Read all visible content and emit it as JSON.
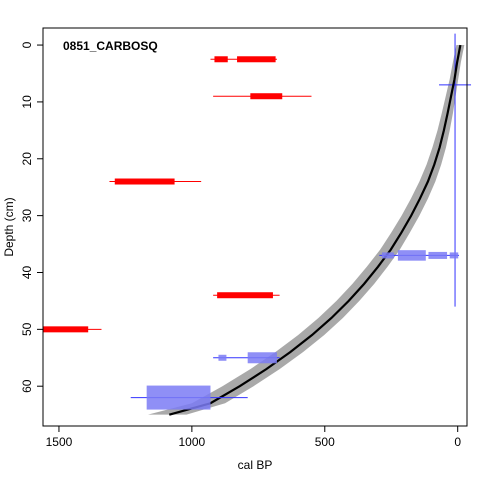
{
  "chart_data": {
    "type": "scatter",
    "title": "0851_CARBOSQ",
    "xlabel": "cal BP",
    "ylabel": "Depth (cm)",
    "xlim": [
      1560,
      -35
    ],
    "ylim": [
      67,
      -3
    ],
    "x_ticks": [
      1500,
      1000,
      500,
      0
    ],
    "y_ticks": [
      0,
      10,
      20,
      30,
      40,
      50,
      60
    ],
    "grid": false,
    "colors": {
      "excluded": "#ff0000",
      "included": "#3333ff",
      "included_fill": "#7b7bf4",
      "model_band": "#a9a9a9",
      "model_line": "#000000"
    },
    "age_depth_model": {
      "depth": [
        0,
        3,
        6,
        9,
        12,
        15,
        18,
        21,
        24,
        27,
        30,
        33,
        36,
        39,
        42,
        45,
        48,
        51,
        54,
        57,
        60,
        63,
        65
      ],
      "mean_age": [
        -10,
        2,
        12,
        25,
        38,
        52,
        68,
        88,
        112,
        142,
        175,
        212,
        252,
        300,
        352,
        410,
        475,
        548,
        630,
        720,
        820,
        930,
        1085
      ],
      "min_age": [
        -25,
        -12,
        -2,
        8,
        18,
        30,
        44,
        62,
        84,
        112,
        144,
        180,
        218,
        264,
        314,
        370,
        432,
        502,
        582,
        670,
        768,
        875,
        1020
      ],
      "max_age": [
        5,
        18,
        30,
        45,
        60,
        76,
        95,
        117,
        144,
        176,
        211,
        250,
        292,
        342,
        396,
        456,
        524,
        600,
        686,
        780,
        885,
        1000,
        1165
      ]
    },
    "dates": [
      {
        "depth": 2.5,
        "status": "excluded",
        "range": [
          930,
          680
        ],
        "blocks": [
          [
            915,
            865
          ],
          [
            830,
            685
          ]
        ]
      },
      {
        "depth": 9,
        "status": "excluded",
        "range": [
          920,
          550
        ],
        "blocks": [
          [
            780,
            660
          ]
        ]
      },
      {
        "depth": 24,
        "status": "excluded",
        "range": [
          1310,
          965
        ],
        "blocks": [
          [
            1290,
            1065
          ]
        ]
      },
      {
        "depth": 44,
        "status": "excluded",
        "range": [
          920,
          670
        ],
        "blocks": [
          [
            905,
            695
          ]
        ]
      },
      {
        "depth": 50,
        "status": "excluded",
        "range": [
          1560,
          1340
        ],
        "blocks": [
          [
            1560,
            1390
          ]
        ]
      },
      {
        "depth": 55,
        "status": "included",
        "range": [
          920,
          670
        ],
        "blocks": [
          [
            900,
            870
          ],
          [
            790,
            680
          ]
        ]
      },
      {
        "depth": 62,
        "status": "included",
        "range": [
          1230,
          790
        ],
        "blocks": [
          [
            1170,
            930
          ]
        ]
      },
      {
        "depth": 37,
        "status": "included",
        "range": [
          295,
          -5
        ],
        "blocks": [
          [
            285,
            240
          ],
          [
            225,
            120
          ],
          [
            110,
            40
          ],
          [
            30,
            -2
          ]
        ]
      }
    ],
    "modern_marker": {
      "age": 10,
      "depth_range": [
        -2,
        46
      ],
      "cap_depth": 7
    }
  }
}
